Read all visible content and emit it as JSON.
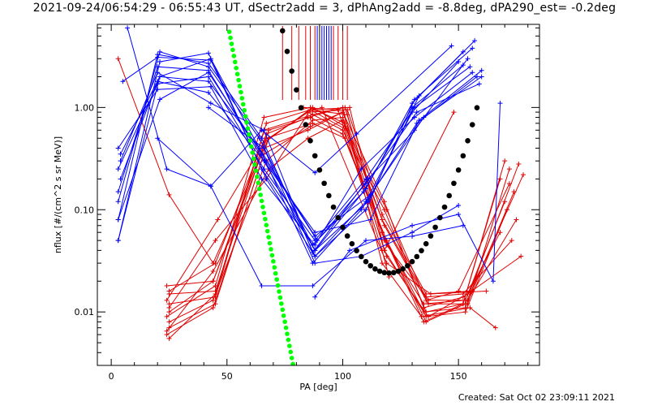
{
  "title": "2021-09-24/06:54:29 - 06:55:43 UT, dSectr2add = 3, dPhAng2add = -8.8deg, dPA290_est= -0.2deg",
  "footer": {
    "created": "Created: Sat Oct 02 23:09:11 2021"
  },
  "colors": {
    "blue": "#0000ff",
    "red": "#e00000",
    "black": "#000000",
    "green": "#00ff00",
    "axis": "#000000"
  },
  "chart_data": {
    "type": "line",
    "xlabel": "PA [deg]",
    "ylabel": "nflux [#/(cm^2 s sr MeV)]",
    "xlim": [
      -6,
      185
    ],
    "ylim": [
      0.003,
      6.5
    ],
    "yscale": "log",
    "xticks": [
      0,
      50,
      100,
      150
    ],
    "xtick_labels": [
      "0",
      "50",
      "100",
      "150"
    ],
    "yticks": [
      0.01,
      0.1,
      1.0
    ],
    "ytick_labels": [
      "0.01",
      "0.10",
      "1.00"
    ],
    "grid": false,
    "legend": "none",
    "series_blue": [
      {
        "x": [
          3,
          20,
          42,
          65,
          88,
          110,
          130,
          150
        ],
        "y": [
          0.08,
          3.3,
          2.7,
          0.5,
          0.035,
          0.12,
          0.9,
          2.8
        ]
      },
      {
        "x": [
          3,
          20,
          42,
          66,
          88,
          110,
          130,
          152
        ],
        "y": [
          0.15,
          2.5,
          2.3,
          0.3,
          0.04,
          0.16,
          1.1,
          3.5
        ]
      },
      {
        "x": [
          3,
          20,
          42,
          66,
          88,
          110,
          131,
          155
        ],
        "y": [
          0.25,
          1.7,
          2.0,
          0.25,
          0.05,
          0.2,
          1.0,
          2.5
        ]
      },
      {
        "x": [
          3,
          20,
          43,
          65,
          88,
          108,
          131,
          156
        ],
        "y": [
          0.4,
          1.5,
          1.6,
          0.2,
          0.045,
          0.25,
          0.8,
          2.2
        ]
      },
      {
        "x": [
          3,
          21,
          43,
          64,
          87,
          108,
          132,
          158
        ],
        "y": [
          0.05,
          2.0,
          3.0,
          0.4,
          0.03,
          0.1,
          0.7,
          2.0
        ]
      },
      {
        "x": [
          4,
          20,
          42,
          66,
          88,
          112,
          133,
          160
        ],
        "y": [
          0.2,
          1.8,
          1.4,
          0.3,
          0.06,
          0.08,
          0.75,
          2.3
        ]
      },
      {
        "x": [
          3,
          21,
          42,
          64,
          88,
          111,
          133,
          157
        ],
        "y": [
          0.12,
          3.5,
          2.5,
          0.5,
          0.04,
          0.12,
          1.3,
          4.5
        ]
      },
      {
        "x": [
          4,
          20,
          43,
          66,
          87,
          111,
          131,
          154
        ],
        "y": [
          0.3,
          2.2,
          1.1,
          0.6,
          0.038,
          0.2,
          0.6,
          3.0
        ]
      },
      {
        "x": [
          3,
          21,
          42,
          65,
          89,
          110,
          132,
          159
        ],
        "y": [
          0.08,
          1.2,
          2.2,
          0.35,
          0.05,
          0.18,
          0.9,
          1.7
        ]
      },
      {
        "x": [
          5,
          20,
          43,
          65,
          87,
          109,
          130,
          152
        ],
        "y": [
          1.8,
          3.1,
          2.9,
          0.25,
          0.045,
          0.15,
          1.0,
          2.6
        ]
      },
      {
        "x": [
          3,
          21,
          42,
          67,
          88,
          110,
          131,
          156
        ],
        "y": [
          0.05,
          2.8,
          3.4,
          0.2,
          0.035,
          0.1,
          1.2,
          3.8
        ]
      },
      {
        "x": [
          4,
          21,
          42,
          64,
          88,
          112,
          135,
          160
        ],
        "y": [
          0.35,
          2.0,
          1.8,
          0.4,
          0.055,
          0.14,
          0.8,
          2.0
        ]
      },
      {
        "x": [
          7,
          24,
          43,
          65,
          87,
          110,
          130,
          152
        ],
        "y": [
          6.0,
          0.25,
          0.17,
          0.018,
          0.018,
          0.05,
          0.055,
          0.07
        ]
      },
      {
        "x": [
          20,
          43,
          65,
          88,
          106,
          147
        ],
        "y": [
          0.5,
          0.17,
          0.6,
          0.23,
          0.55,
          4.0
        ]
      },
      {
        "x": [
          42,
          66,
          88,
          108,
          130,
          150
        ],
        "y": [
          1.0,
          0.4,
          0.03,
          0.035,
          0.06,
          0.11
        ]
      },
      {
        "x": [
          88,
          103,
          130,
          150,
          165,
          168
        ],
        "y": [
          0.014,
          0.04,
          0.07,
          0.09,
          0.02,
          1.1
        ]
      }
    ],
    "series_red": [
      {
        "x": [
          3,
          25,
          44,
          68,
          85,
          100,
          118,
          136,
          152,
          168
        ],
        "y": [
          3.0,
          0.14,
          0.03,
          0.5,
          0.9,
          0.6,
          0.1,
          0.01,
          0.012,
          0.2
        ]
      },
      {
        "x": [
          24,
          44,
          68,
          86,
          100,
          117,
          135,
          152,
          170
        ],
        "y": [
          0.018,
          0.02,
          0.6,
          0.8,
          0.55,
          0.06,
          0.008,
          0.012,
          0.3
        ]
      },
      {
        "x": [
          25,
          45,
          67,
          87,
          101,
          119,
          136,
          153,
          171
        ],
        "y": [
          0.015,
          0.016,
          0.5,
          0.7,
          0.5,
          0.05,
          0.009,
          0.01,
          0.1
        ]
      },
      {
        "x": [
          25,
          45,
          67,
          86,
          102,
          118,
          137,
          154,
          172
        ],
        "y": [
          0.012,
          0.014,
          0.7,
          0.95,
          0.6,
          0.07,
          0.012,
          0.012,
          0.25
        ]
      },
      {
        "x": [
          25,
          44,
          66,
          85,
          100,
          117,
          136,
          152,
          173
        ],
        "y": [
          0.01,
          0.02,
          0.4,
          0.6,
          0.9,
          0.08,
          0.014,
          0.015,
          0.05
        ]
      },
      {
        "x": [
          24,
          45,
          66,
          86,
          101,
          118,
          135,
          153,
          174
        ],
        "y": [
          0.009,
          0.018,
          0.8,
          1.0,
          0.7,
          0.04,
          0.01,
          0.011,
          0.15
        ]
      },
      {
        "x": [
          25,
          44,
          67,
          87,
          100,
          119,
          137,
          154,
          175
        ],
        "y": [
          0.008,
          0.013,
          0.3,
          0.75,
          0.8,
          0.045,
          0.013,
          0.013,
          0.08
        ]
      },
      {
        "x": [
          25,
          45,
          68,
          85,
          102,
          117,
          136,
          155,
          176
        ],
        "y": [
          0.007,
          0.012,
          0.5,
          0.9,
          0.95,
          0.09,
          0.015,
          0.016,
          0.28
        ]
      },
      {
        "x": [
          24,
          44,
          66,
          86,
          100,
          118,
          135,
          152,
          177
        ],
        "y": [
          0.006,
          0.011,
          0.35,
          0.65,
          0.9,
          0.12,
          0.011,
          0.014,
          0.035
        ]
      },
      {
        "x": [
          25,
          45,
          66,
          87,
          101,
          117,
          136,
          153,
          178
        ],
        "y": [
          0.0055,
          0.015,
          0.6,
          0.85,
          1.0,
          0.06,
          0.008,
          0.012,
          0.22
        ]
      },
      {
        "x": [
          24,
          44,
          68,
          85,
          100,
          119,
          137,
          154,
          168
        ],
        "y": [
          0.0065,
          0.025,
          0.25,
          0.5,
          0.75,
          0.035,
          0.009,
          0.015,
          0.06
        ]
      },
      {
        "x": [
          25,
          45,
          67,
          86,
          102,
          118,
          135,
          153,
          170
        ],
        "y": [
          0.011,
          0.05,
          0.2,
          0.95,
          0.85,
          0.05,
          0.012,
          0.013,
          0.12
        ]
      },
      {
        "x": [
          24,
          46,
          66,
          87,
          101,
          119,
          136,
          150,
          172
        ],
        "y": [
          0.013,
          0.08,
          0.45,
          1.0,
          0.65,
          0.1,
          0.013,
          0.016,
          0.18
        ]
      },
      {
        "x": [
          25,
          45,
          67,
          85,
          100,
          117,
          134,
          155,
          166
        ],
        "y": [
          0.016,
          0.03,
          0.55,
          0.8,
          1.0,
          0.03,
          0.009,
          0.011,
          0.007
        ]
      },
      {
        "x": [
          87,
          103,
          118,
          148
        ],
        "y": [
          0.95,
          1.0,
          0.04,
          0.9
        ]
      },
      {
        "x": [
          83,
          98,
          117,
          120
        ],
        "y": [
          1.0,
          0.95,
          0.04,
          0.022
        ]
      },
      {
        "x": [
          91,
          119,
          138,
          162
        ],
        "y": [
          1.0,
          0.03,
          0.015,
          0.016
        ]
      }
    ],
    "black_curve": {
      "x_start": 46,
      "x_end": 158,
      "step": 2,
      "min_x": 120,
      "min_y": 0.024,
      "k": 0.00112
    },
    "green_line": {
      "x": [
        51,
        79
      ],
      "y": [
        5.5,
        0.0027
      ],
      "step": 1
    },
    "vertical_markers": [
      {
        "x": 74,
        "color": "red"
      },
      {
        "x": 78,
        "color": "red"
      },
      {
        "x": 81,
        "color": "red"
      },
      {
        "x": 84,
        "color": "red"
      },
      {
        "x": 86,
        "color": "red"
      },
      {
        "x": 88,
        "color": "red"
      },
      {
        "x": 89,
        "color": "blue"
      },
      {
        "x": 90,
        "color": "black"
      },
      {
        "x": 91,
        "color": "blue"
      },
      {
        "x": 92,
        "color": "blue"
      },
      {
        "x": 93,
        "color": "blue"
      },
      {
        "x": 94,
        "color": "blue"
      },
      {
        "x": 95,
        "color": "blue"
      },
      {
        "x": 96,
        "color": "red"
      },
      {
        "x": 98,
        "color": "red"
      },
      {
        "x": 100,
        "color": "red"
      },
      {
        "x": 102,
        "color": "red"
      }
    ]
  }
}
